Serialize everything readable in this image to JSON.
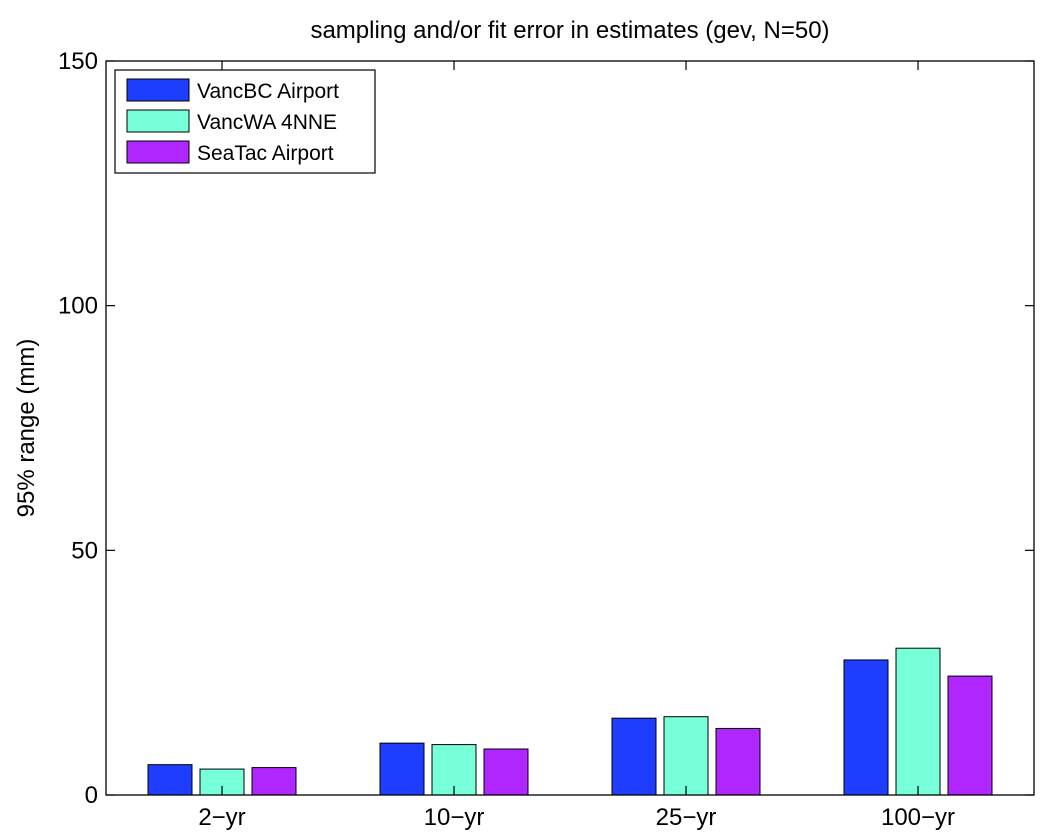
{
  "chart_data": {
    "type": "bar",
    "title": "sampling and/or fit error in estimates (gev, N=50)",
    "xlabel": "",
    "ylabel": "95% range (mm)",
    "ylim": [
      0,
      150
    ],
    "yticks": [
      "0",
      "50",
      "100",
      "150"
    ],
    "categories": [
      "2−yr",
      "10−yr",
      "25−yr",
      "100−yr"
    ],
    "series": [
      {
        "name": "VancBC Airport",
        "color": "#1f3dff",
        "values": [
          6.2,
          10.6,
          15.7,
          27.6
        ]
      },
      {
        "name": "VancWA 4NNE",
        "color": "#77ffd9",
        "values": [
          5.3,
          10.3,
          16.0,
          30.0
        ]
      },
      {
        "name": "SeaTac Airport",
        "color": "#b026ff",
        "values": [
          5.6,
          9.4,
          13.6,
          24.3
        ]
      }
    ],
    "grid": false,
    "legend_position": "top-left"
  }
}
